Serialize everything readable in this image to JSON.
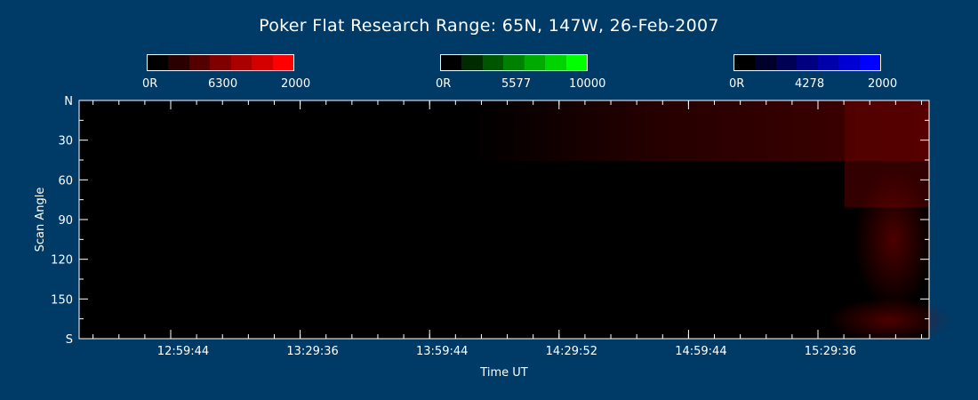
{
  "title": "Poker Flat Research Range: 65N, 147W, 26-Feb-2007",
  "colorbars": [
    {
      "name": "red",
      "labels": [
        "0R",
        "6300",
        "2000"
      ],
      "colors": [
        "#000000",
        "#2a0000",
        "#550000",
        "#800000",
        "#aa0000",
        "#d40000",
        "#ff0000"
      ]
    },
    {
      "name": "green",
      "labels": [
        "0R",
        "5577",
        "10000"
      ],
      "colors": [
        "#000000",
        "#002a00",
        "#005500",
        "#008000",
        "#00aa00",
        "#00d400",
        "#00ff00"
      ]
    },
    {
      "name": "blue",
      "labels": [
        "0R",
        "4278",
        "2000"
      ],
      "colors": [
        "#000000",
        "#00002a",
        "#000055",
        "#000080",
        "#0000aa",
        "#0000d4",
        "#0000ff"
      ]
    }
  ],
  "chart_data": {
    "type": "heatmap",
    "title": "Poker Flat Research Range: 65N, 147W, 26-Feb-2007",
    "xlabel": "Time UT",
    "ylabel": "Scan Angle",
    "x_ticks": [
      "12:59:44",
      "13:29:36",
      "13:59:44",
      "14:29:52",
      "14:59:44",
      "15:29:36"
    ],
    "y_ticks": [
      "N",
      "30",
      "60",
      "90",
      "120",
      "150",
      "S"
    ],
    "ylim": [
      0,
      180
    ],
    "colors": {
      "background": "#003a66",
      "frame": "#ffffff",
      "field": "#000000",
      "emission": "#8b0000"
    }
  }
}
